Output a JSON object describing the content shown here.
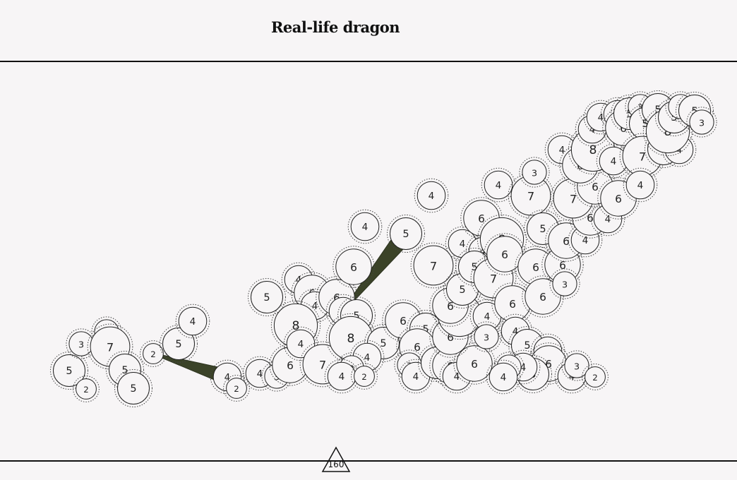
{
  "title": "Real-life dragon",
  "marker_label": "160",
  "colors": {
    "background": "#f7f5f6",
    "bridge": "#3b4328",
    "stroke": "#222222"
  },
  "nodes": [
    [
      "n1",
      98,
      525,
      5
    ],
    [
      "n2",
      122,
      551,
      2
    ],
    [
      "n3",
      115,
      487,
      3
    ],
    [
      "n4",
      151,
      470,
      3
    ],
    [
      "n5",
      156,
      491,
      7
    ],
    [
      "n6",
      177,
      524,
      5
    ],
    [
      "n7",
      189,
      550,
      5
    ],
    [
      "n8",
      217,
      501,
      2
    ],
    [
      "n9",
      253,
      487,
      5
    ],
    [
      "n10",
      273,
      455,
      4
    ],
    [
      "n11",
      322,
      534,
      4
    ],
    [
      "n12",
      335,
      550,
      2
    ],
    [
      "n13",
      368,
      529,
      4
    ],
    [
      "n14",
      392,
      533,
      3
    ],
    [
      "n15",
      411,
      517,
      6
    ],
    [
      "n16",
      378,
      421,
      5
    ],
    [
      "n17",
      423,
      396,
      4
    ],
    [
      "n18",
      442,
      415,
      6
    ],
    [
      "n19",
      446,
      433,
      4
    ],
    [
      "n20",
      419,
      461,
      8
    ],
    [
      "n21",
      426,
      487,
      4
    ],
    [
      "n22",
      457,
      516,
      7
    ],
    [
      "n23",
      477,
      421,
      6
    ],
    [
      "n24",
      486,
      441,
      4
    ],
    [
      "n25",
      505,
      447,
      5
    ],
    [
      "n26",
      497,
      479,
      8
    ],
    [
      "n27",
      543,
      486,
      5
    ],
    [
      "n28",
      520,
      506,
      4
    ],
    [
      "n29",
      498,
      521,
      3
    ],
    [
      "n30",
      484,
      533,
      4
    ],
    [
      "n31",
      516,
      533,
      2
    ],
    [
      "n32",
      501,
      378,
      6
    ],
    [
      "n33",
      517,
      321,
      4
    ],
    [
      "n34",
      575,
      331,
      5
    ],
    [
      "n35",
      614,
      376,
      7
    ],
    [
      "n36",
      611,
      277,
      4
    ],
    [
      "n37",
      571,
      454,
      6
    ],
    [
      "n38",
      603,
      466,
      5
    ],
    [
      "n39",
      591,
      491,
      6
    ],
    [
      "n40",
      580,
      517,
      3
    ],
    [
      "n41",
      589,
      533,
      4
    ],
    [
      "n42",
      619,
      514,
      5
    ],
    [
      "n43",
      638,
      518,
      6
    ],
    [
      "n44",
      647,
      533,
      4
    ],
    [
      "n45",
      672,
      515,
      6
    ],
    [
      "n46",
      638,
      477,
      6
    ],
    [
      "n47",
      651,
      446,
      8
    ],
    [
      "n48",
      638,
      433,
      6
    ],
    [
      "n49",
      655,
      410,
      5
    ],
    [
      "n50",
      690,
      448,
      4
    ],
    [
      "n51",
      689,
      477,
      3
    ],
    [
      "n52",
      655,
      345,
      4
    ],
    [
      "n53",
      682,
      309,
      6
    ],
    [
      "n54",
      684,
      356,
      4
    ],
    [
      "n55",
      672,
      378,
      5
    ],
    [
      "n56",
      699,
      394,
      7
    ],
    [
      "n57",
      711,
      339,
      8
    ],
    [
      "n58",
      715,
      360,
      6
    ],
    [
      "n59",
      706,
      262,
      4
    ],
    [
      "n60",
      726,
      430,
      6
    ],
    [
      "n61",
      730,
      469,
      4
    ],
    [
      "n62",
      747,
      489,
      5
    ],
    [
      "n63",
      776,
      497,
      4
    ],
    [
      "n64",
      777,
      515,
      6
    ],
    [
      "n65",
      755,
      530,
      5
    ],
    [
      "n66",
      741,
      520,
      4
    ],
    [
      "n67",
      721,
      520,
      3
    ],
    [
      "n68",
      713,
      534,
      4
    ],
    [
      "n69",
      752,
      277,
      7
    ],
    [
      "n70",
      757,
      244,
      3
    ],
    [
      "n71",
      769,
      324,
      5
    ],
    [
      "n72",
      759,
      378,
      6
    ],
    [
      "n73",
      769,
      420,
      6
    ],
    [
      "n74",
      797,
      375,
      6
    ],
    [
      "n75",
      800,
      402,
      3
    ],
    [
      "n76",
      802,
      341,
      6
    ],
    [
      "n77",
      829,
      340,
      4
    ],
    [
      "n78",
      836,
      308,
      6
    ],
    [
      "n79",
      861,
      310,
      4
    ],
    [
      "n80",
      812,
      281,
      7
    ],
    [
      "n81",
      843,
      264,
      6
    ],
    [
      "n82",
      876,
      281,
      6
    ],
    [
      "n83",
      796,
      212,
      4
    ],
    [
      "n84",
      822,
      234,
      6
    ],
    [
      "n85",
      840,
      212,
      8
    ],
    [
      "n86",
      869,
      228,
      4
    ],
    [
      "n87",
      839,
      183,
      4
    ],
    [
      "n88",
      851,
      166,
      4
    ],
    [
      "n89",
      875,
      162,
      4
    ],
    [
      "n90",
      883,
      181,
      6
    ],
    [
      "n91",
      892,
      161,
      5
    ],
    [
      "n92",
      907,
      151,
      3
    ],
    [
      "n93",
      914,
      175,
      5
    ],
    [
      "n94",
      932,
      155,
      5
    ],
    [
      "n95",
      910,
      221,
      7
    ],
    [
      "n96",
      907,
      262,
      4
    ],
    [
      "n97",
      940,
      211,
      5
    ],
    [
      "n98",
      962,
      212,
      4
    ],
    [
      "n99",
      946,
      186,
      8
    ],
    [
      "n100",
      955,
      166,
      5
    ],
    [
      "n101",
      964,
      151,
      3
    ],
    [
      "n102",
      984,
      157,
      5
    ],
    [
      "n103",
      994,
      173,
      3
    ],
    [
      "n104",
      810,
      533,
      4
    ],
    [
      "n105",
      817,
      518,
      3
    ],
    [
      "n106",
      843,
      534,
      2
    ]
  ],
  "bridges": [
    {
      "from": "n8",
      "to": "n11"
    },
    {
      "from": "n24",
      "to": "n34"
    }
  ]
}
